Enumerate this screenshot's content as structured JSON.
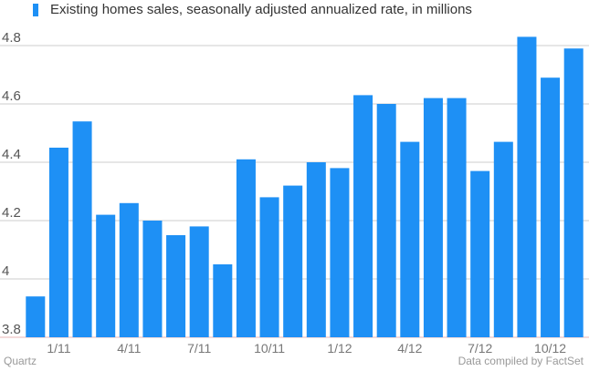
{
  "legend": {
    "label": "Existing homes sales, seasonally adjusted annualized rate, in millions"
  },
  "footer": {
    "source_left": "Quartz",
    "source_right": "Data compiled by FactSet"
  },
  "colors": {
    "bar": "#1E90F5",
    "grid": "#cccccc",
    "baseline": "#e8b4b4",
    "tick_text": "#555555",
    "xtick_text": "#777777"
  },
  "chart_data": {
    "type": "bar",
    "title": "",
    "xlabel": "",
    "ylabel": "",
    "ylim": [
      3.8,
      4.9
    ],
    "yticks": [
      3.8,
      4.0,
      4.2,
      4.4,
      4.6,
      4.8
    ],
    "ytick_labels": [
      "3.8",
      "4",
      "4.2",
      "4.4",
      "4.6",
      "4.8"
    ],
    "grid": true,
    "legend_position": "top-left",
    "series": [
      {
        "name": "Existing homes sales, seasonally adjusted annualized rate, in millions",
        "values": [
          3.94,
          4.45,
          4.54,
          4.22,
          4.26,
          4.2,
          4.15,
          4.18,
          4.05,
          4.41,
          4.28,
          4.32,
          4.4,
          4.38,
          4.63,
          4.6,
          4.47,
          4.62,
          4.62,
          4.37,
          4.47,
          4.83,
          4.69,
          4.79
        ]
      }
    ],
    "categories": [
      "",
      "1/11",
      "",
      "",
      "4/11",
      "",
      "",
      "7/11",
      "",
      "",
      "10/11",
      "",
      "",
      "1/12",
      "",
      "",
      "4/12",
      "",
      "",
      "7/12",
      "",
      "",
      "10/12",
      ""
    ]
  }
}
